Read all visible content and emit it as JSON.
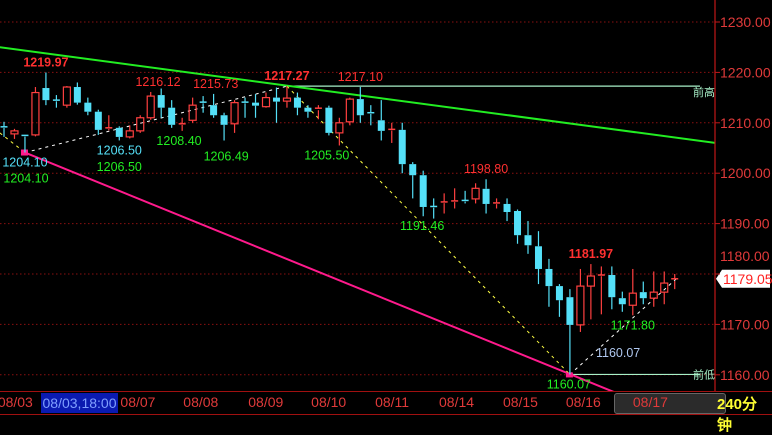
{
  "chart_data": {
    "type": "candlestick",
    "period_label": "240分钟",
    "y_axis": {
      "ticks": [
        1160,
        1170,
        1180,
        1190,
        1200,
        1210,
        1220,
        1230
      ],
      "tick_labels": [
        "1160.00",
        "1170.00",
        "1180.00",
        "1190.00",
        "1200.00",
        "1210.00",
        "1220.00",
        "1230.00"
      ],
      "range": [
        1158,
        1234
      ],
      "grid": true
    },
    "last_price": "1179.05",
    "colors": {
      "up": "#ff4040",
      "down": "#54e0f8",
      "grid": "#8a1010",
      "axis": "#c01818",
      "resistance": "#22ee22",
      "support": "#ff1a8c"
    },
    "date_labels": [
      {
        "label": "08/03",
        "index": -0.4
      },
      {
        "label": "08/07",
        "index": 11.3
      },
      {
        "label": "08/08",
        "index": 17.3
      },
      {
        "label": "08/09",
        "index": 23.5
      },
      {
        "label": "08/10",
        "index": 29.5
      },
      {
        "label": "08/11",
        "index": 35.6
      },
      {
        "label": "08/14",
        "index": 41.7
      },
      {
        "label": "08/15",
        "index": 47.8
      },
      {
        "label": "08/16",
        "index": 53.8
      },
      {
        "label": "08/17",
        "index": 60.2
      }
    ],
    "selected_time": "08/03,18:00",
    "candles_ohlc": [
      [
        1209.2,
        1210.2,
        1207.2,
        1209.0
      ],
      [
        1207.8,
        1208.8,
        1206.8,
        1208.4
      ],
      [
        1207.5,
        1207.6,
        1204.1,
        1207.3
      ],
      [
        1207.6,
        1217.1,
        1207.3,
        1216.0
      ],
      [
        1216.9,
        1219.97,
        1213.5,
        1214.5
      ],
      [
        1214.5,
        1215.5,
        1213.0,
        1214.4
      ],
      [
        1213.5,
        1217.3,
        1213.0,
        1217.1
      ],
      [
        1217.1,
        1218.0,
        1213.6,
        1214.0
      ],
      [
        1214.0,
        1215.0,
        1211.5,
        1212.2
      ],
      [
        1212.2,
        1212.6,
        1207.6,
        1208.6
      ],
      [
        1208.9,
        1211.5,
        1208.5,
        1209.0
      ],
      [
        1209.0,
        1209.3,
        1206.5,
        1207.2
      ],
      [
        1207.2,
        1209.5,
        1206.9,
        1208.4
      ],
      [
        1208.4,
        1211.5,
        1208.0,
        1211.0
      ],
      [
        1211.0,
        1216.12,
        1210.6,
        1215.3
      ],
      [
        1215.5,
        1216.8,
        1211.0,
        1213.0
      ],
      [
        1213.0,
        1214.5,
        1209.0,
        1209.6
      ],
      [
        1209.6,
        1211.0,
        1208.4,
        1209.8
      ],
      [
        1210.5,
        1215.0,
        1210.0,
        1213.5
      ],
      [
        1214.1,
        1215.3,
        1212.0,
        1214.0
      ],
      [
        1213.5,
        1215.73,
        1211.0,
        1211.5
      ],
      [
        1211.5,
        1212.0,
        1206.49,
        1209.6
      ],
      [
        1209.8,
        1214.5,
        1208.0,
        1214.0
      ],
      [
        1214.1,
        1215.0,
        1211.0,
        1214.0
      ],
      [
        1214.0,
        1215.7,
        1211.0,
        1213.4
      ],
      [
        1213.2,
        1216.0,
        1213.0,
        1215.0
      ],
      [
        1215.0,
        1217.0,
        1210.0,
        1214.2
      ],
      [
        1214.3,
        1217.27,
        1213.0,
        1214.9
      ],
      [
        1215.0,
        1216.0,
        1211.5,
        1213.0
      ],
      [
        1213.0,
        1213.5,
        1211.0,
        1212.2
      ],
      [
        1212.5,
        1213.5,
        1210.7,
        1212.9
      ],
      [
        1213.0,
        1213.4,
        1207.5,
        1208.0
      ],
      [
        1208.0,
        1211.0,
        1205.5,
        1210.0
      ],
      [
        1210.2,
        1215.0,
        1209.5,
        1214.7
      ],
      [
        1214.7,
        1217.1,
        1210.0,
        1211.5
      ],
      [
        1212.0,
        1213.5,
        1209.5,
        1211.9
      ],
      [
        1210.5,
        1214.5,
        1206.5,
        1208.4
      ],
      [
        1208.6,
        1210.0,
        1206.0,
        1208.7
      ],
      [
        1208.6,
        1210.0,
        1200.0,
        1201.8
      ],
      [
        1201.8,
        1202.2,
        1195.0,
        1199.6
      ],
      [
        1199.6,
        1200.5,
        1191.46,
        1193.3
      ],
      [
        1193.4,
        1195.0,
        1191.0,
        1193.3
      ],
      [
        1194.2,
        1196.0,
        1192.0,
        1194.3
      ],
      [
        1194.4,
        1197.0,
        1193.0,
        1194.5
      ],
      [
        1194.6,
        1196.5,
        1194.0,
        1194.5
      ],
      [
        1194.9,
        1198.0,
        1194.0,
        1197.0
      ],
      [
        1196.9,
        1198.8,
        1192.0,
        1193.9
      ],
      [
        1194.0,
        1195.0,
        1193.0,
        1194.1
      ],
      [
        1193.9,
        1195.0,
        1190.5,
        1192.3
      ],
      [
        1192.5,
        1192.8,
        1186.0,
        1187.7
      ],
      [
        1187.7,
        1190.5,
        1184.0,
        1185.7
      ],
      [
        1185.5,
        1188.5,
        1178.0,
        1181.0
      ],
      [
        1181.0,
        1183.0,
        1173.5,
        1177.6
      ],
      [
        1177.6,
        1178.0,
        1171.5,
        1174.8
      ],
      [
        1175.4,
        1177.0,
        1160.07,
        1169.9
      ],
      [
        1169.9,
        1181.0,
        1168.5,
        1177.6
      ],
      [
        1177.6,
        1181.97,
        1171.0,
        1179.6
      ],
      [
        1179.7,
        1181.5,
        1172.0,
        1179.8
      ],
      [
        1179.8,
        1181.5,
        1173.0,
        1175.4
      ],
      [
        1175.2,
        1176.5,
        1172.5,
        1174.0
      ],
      [
        1173.8,
        1181.0,
        1171.8,
        1176.2
      ],
      [
        1176.4,
        1178.5,
        1174.0,
        1175.2
      ],
      [
        1175.2,
        1180.5,
        1173.5,
        1176.4
      ],
      [
        1176.4,
        1180.5,
        1174.0,
        1178.2
      ],
      [
        1178.6,
        1180.0,
        1177.0,
        1179.05
      ]
    ],
    "trendlines": [
      {
        "kind": "resistance",
        "style": "solid",
        "color": "#22ee22",
        "from": [
          -0.4,
          1225.0
        ],
        "to": [
          67.9,
          1206.0
        ]
      },
      {
        "kind": "support",
        "style": "solid",
        "color": "#ff1a8c",
        "from": [
          2,
          1204.1
        ],
        "to": [
          58.3,
          1156.5
        ]
      },
      {
        "kind": "wave",
        "style": "dashed",
        "color": "#ffff44",
        "from": [
          -0.4,
          1208.0
        ],
        "to": [
          2,
          1204.1
        ]
      },
      {
        "kind": "wave",
        "style": "dashed",
        "color": "#ffffff",
        "from": [
          2,
          1204.1
        ],
        "to": [
          27,
          1217.27
        ]
      },
      {
        "kind": "wave",
        "style": "dashed",
        "color": "#ffff44",
        "from": [
          27,
          1217.27
        ],
        "to": [
          54,
          1160.07
        ]
      },
      {
        "kind": "wave",
        "style": "dashed",
        "color": "#ffffff",
        "from": [
          54,
          1160.07
        ],
        "to": [
          64.4,
          1179.5
        ]
      }
    ],
    "levels": [
      {
        "label": "前高",
        "price": 1217.27,
        "from_index": 27,
        "color": "#a8f0c8"
      },
      {
        "label": "前低",
        "price": 1160.07,
        "from_index": 54,
        "color": "#a8f0c8"
      }
    ],
    "annotations": [
      {
        "text": "1219.97",
        "index": 4,
        "price": 1219.97,
        "pos": "above",
        "color": "#ff3030",
        "double": true
      },
      {
        "text": "1216.12",
        "index": 14.7,
        "price": 1216.12,
        "pos": "above",
        "color": "#ff3030"
      },
      {
        "text": "1215.73",
        "index": 20.2,
        "price": 1215.73,
        "pos": "above",
        "color": "#ff3030"
      },
      {
        "text": "1217.27",
        "index": 27,
        "price": 1217.27,
        "pos": "above",
        "color": "#ff3030",
        "double": true
      },
      {
        "text": "1217.10",
        "index": 34,
        "price": 1217.1,
        "pos": "above",
        "color": "#ff3030"
      },
      {
        "text": "1198.80",
        "index": 46,
        "price": 1198.8,
        "pos": "above",
        "color": "#ff3030"
      },
      {
        "text": "1181.97",
        "index": 56,
        "price": 1181.97,
        "pos": "above",
        "color": "#ff3030",
        "double": true
      },
      {
        "text": "1204.10",
        "index": 2,
        "price": 1204.1,
        "pos": "below",
        "color": "#55e0f8"
      },
      {
        "text": "1204.10",
        "index": 2.1,
        "price": 1203.3,
        "pos": "below",
        "color": "#22ee22"
      },
      {
        "text": "1206.50",
        "index": 11,
        "price": 1206.5,
        "pos": "below",
        "color": "#55e0f8"
      },
      {
        "text": "1206.50",
        "index": 11,
        "price": 1205.6,
        "pos": "below",
        "color": "#22ee22"
      },
      {
        "text": "1208.40",
        "index": 16.7,
        "price": 1208.4,
        "pos": "below",
        "color": "#22ee22"
      },
      {
        "text": "1206.49",
        "index": 21.2,
        "price": 1206.49,
        "pos": "below",
        "color": "#22ee22"
      },
      {
        "text": "1205.50",
        "index": 30.8,
        "price": 1205.5,
        "pos": "below",
        "color": "#22ee22"
      },
      {
        "text": "1191.46",
        "index": 39.9,
        "price": 1191.46,
        "pos": "below",
        "color": "#22ee22"
      },
      {
        "text": "1171.80",
        "index": 60,
        "price": 1171.8,
        "pos": "below",
        "color": "#22ee22"
      },
      {
        "text": "1160.07",
        "index": 53.9,
        "price": 1160.07,
        "pos": "below",
        "color": "#22ee22"
      },
      {
        "text": "1160.07",
        "index": 58.6,
        "price": 1162.3,
        "pos": "above",
        "color": "#b0c8f0"
      }
    ]
  }
}
